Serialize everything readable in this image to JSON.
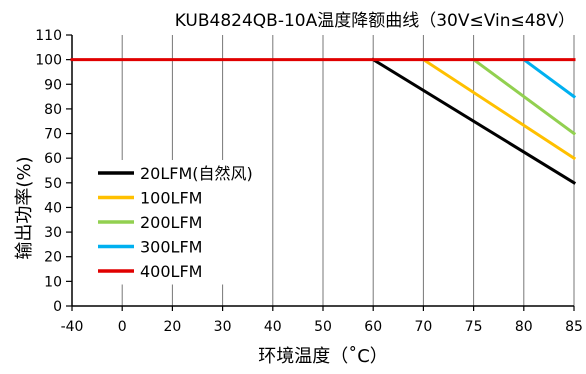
{
  "chart_data": {
    "type": "line",
    "title": "KUB4824QB-10A温度降额曲线（30V≤Vin≤48V）",
    "xlabel": "环境温度（˚C）",
    "ylabel": "输出功率(%)",
    "xlim": [
      -40,
      85
    ],
    "ylim": [
      0,
      110
    ],
    "x_ticks": [
      -40,
      0,
      20,
      30,
      40,
      50,
      60,
      70,
      75,
      80,
      85
    ],
    "y_ticks": [
      0,
      10,
      20,
      30,
      40,
      50,
      60,
      70,
      80,
      90,
      100,
      110
    ],
    "grid": "vertical",
    "legend_position": "bottom-left",
    "series": [
      {
        "name": "20LFM(自然风)",
        "color": "#000000",
        "points": [
          [
            60,
            100
          ],
          [
            85,
            50
          ]
        ]
      },
      {
        "name": "100LFM",
        "color": "#ffc000",
        "points": [
          [
            70,
            100
          ],
          [
            85,
            60
          ]
        ]
      },
      {
        "name": "200LFM",
        "color": "#92d050",
        "points": [
          [
            75,
            100
          ],
          [
            85,
            70
          ]
        ]
      },
      {
        "name": "300LFM",
        "color": "#00b0f0",
        "points": [
          [
            80,
            100
          ],
          [
            85,
            85
          ]
        ]
      },
      {
        "name": "400LFM",
        "color": "#e00000",
        "points": [
          [
            -40,
            100
          ],
          [
            85,
            100
          ]
        ]
      }
    ]
  }
}
